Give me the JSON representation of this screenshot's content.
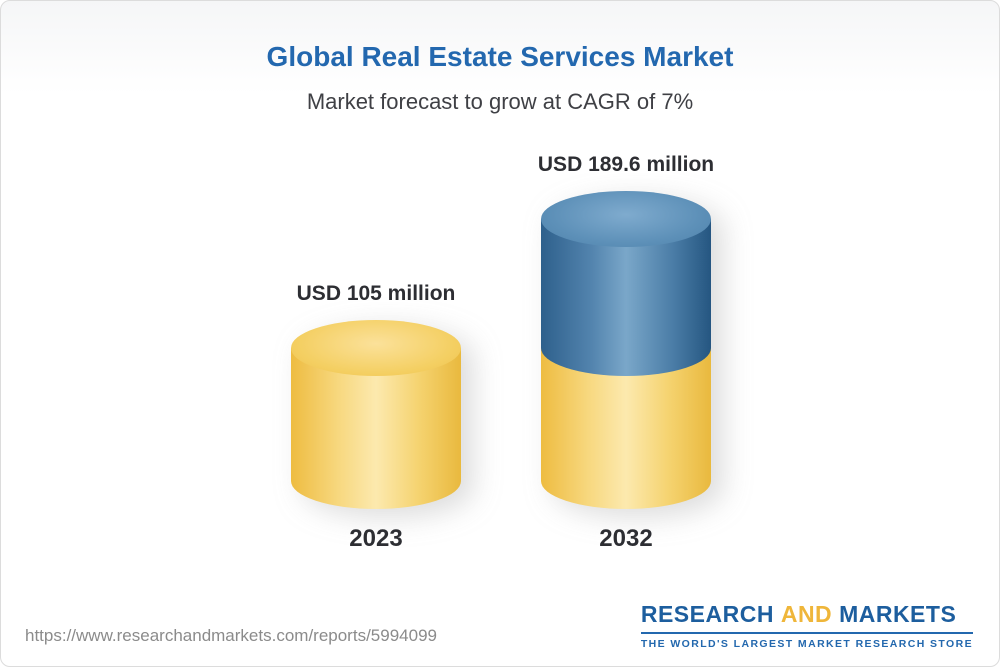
{
  "header": {
    "title": "Global Real Estate Services Market",
    "subtitle": "Market forecast to grow at CAGR of 7%"
  },
  "chart_data": {
    "type": "bar",
    "variant": "3d-cylinder",
    "categories": [
      "2023",
      "2032"
    ],
    "values": [
      105,
      189.6
    ],
    "value_labels": [
      "USD 105 million",
      "USD 189.6 million"
    ],
    "unit": "USD million",
    "cagr": "7%",
    "colors": {
      "base": "#f2c94c",
      "growth": "#4a7fa9"
    },
    "legend": "none",
    "notes": "2032 cylinder shows 2023 base value in yellow with incremental growth portion in blue stacked on top"
  },
  "footer": {
    "url": "https://www.researchandmarkets.com/reports/5994099",
    "logo": {
      "part1": "RESEARCH",
      "part2": "AND",
      "part3": "MARKETS",
      "tagline": "THE WORLD'S LARGEST MARKET RESEARCH STORE"
    }
  }
}
